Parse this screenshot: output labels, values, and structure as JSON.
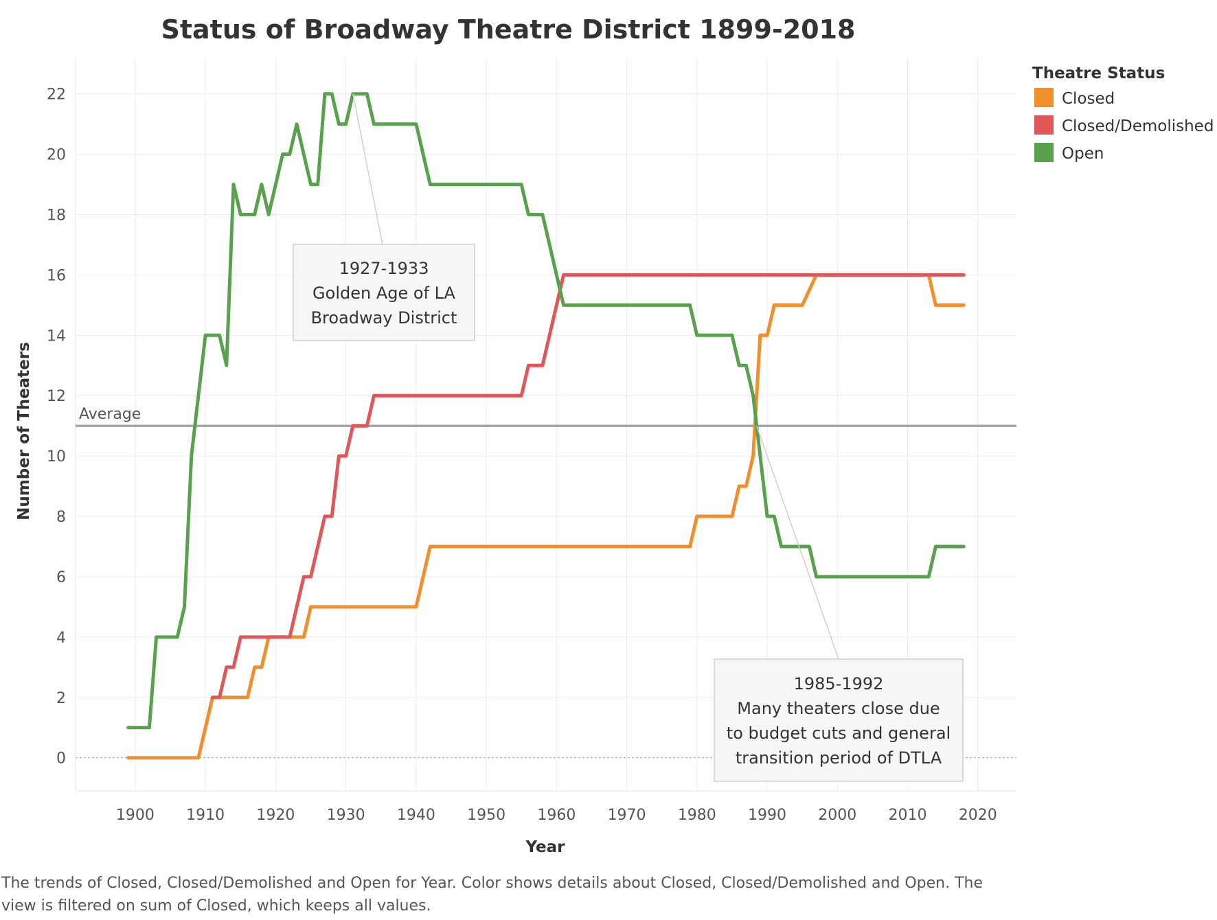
{
  "chart_data": {
    "type": "line",
    "title": "Status of Broadway Theatre District 1899-2018",
    "xlabel": "Year",
    "ylabel": "Number of Theaters",
    "xlim": [
      1891.5,
      2025.5
    ],
    "ylim": [
      -1.1,
      23.2
    ],
    "xticks": [
      1900,
      1910,
      1920,
      1930,
      1940,
      1950,
      1960,
      1970,
      1980,
      1990,
      2000,
      2010,
      2020
    ],
    "yticks": [
      0,
      2,
      4,
      6,
      8,
      10,
      12,
      14,
      16,
      18,
      20,
      22
    ],
    "grid": true,
    "legend": {
      "title": "Theatre Status",
      "placement": "right",
      "entries": [
        "Closed",
        "Closed/Demolished",
        "Open"
      ]
    },
    "series": [
      {
        "name": "Closed",
        "color": "#f28e2b",
        "points": [
          [
            1899,
            0
          ],
          [
            1909,
            0
          ],
          [
            1911,
            2
          ],
          [
            1916,
            2
          ],
          [
            1917,
            3
          ],
          [
            1918,
            3
          ],
          [
            1919,
            4
          ],
          [
            1924,
            4
          ],
          [
            1925,
            5
          ],
          [
            1940,
            5
          ],
          [
            1942,
            7
          ],
          [
            1979,
            7
          ],
          [
            1980,
            8
          ],
          [
            1985,
            8
          ],
          [
            1986,
            9
          ],
          [
            1987,
            9
          ],
          [
            1988,
            10
          ],
          [
            1989,
            14
          ],
          [
            1990,
            14
          ],
          [
            1991,
            15
          ],
          [
            1995,
            15
          ],
          [
            1997,
            16
          ],
          [
            2013,
            16
          ],
          [
            2014,
            15
          ],
          [
            2018,
            15
          ]
        ]
      },
      {
        "name": "Closed/Demolished",
        "color": "#e15759",
        "points": [
          [
            1911,
            2
          ],
          [
            1912,
            2
          ],
          [
            1913,
            3
          ],
          [
            1914,
            3
          ],
          [
            1915,
            4
          ],
          [
            1921,
            4
          ],
          [
            1922,
            4
          ],
          [
            1924,
            6
          ],
          [
            1925,
            6
          ],
          [
            1927,
            8
          ],
          [
            1928,
            8
          ],
          [
            1929,
            10
          ],
          [
            1930,
            10
          ],
          [
            1931,
            11
          ],
          [
            1933,
            11
          ],
          [
            1934,
            12
          ],
          [
            1955,
            12
          ],
          [
            1956,
            13
          ],
          [
            1958,
            13
          ],
          [
            1961,
            16
          ],
          [
            2018,
            16
          ]
        ]
      },
      {
        "name": "Open",
        "color": "#59a14f",
        "points": [
          [
            1899,
            1
          ],
          [
            1902,
            1
          ],
          [
            1903,
            4
          ],
          [
            1906,
            4
          ],
          [
            1907,
            5
          ],
          [
            1908,
            10
          ],
          [
            1910,
            14
          ],
          [
            1912,
            14
          ],
          [
            1913,
            13
          ],
          [
            1914,
            19
          ],
          [
            1915,
            18
          ],
          [
            1917,
            18
          ],
          [
            1918,
            19
          ],
          [
            1919,
            18
          ],
          [
            1921,
            20
          ],
          [
            1922,
            20
          ],
          [
            1923,
            21
          ],
          [
            1925,
            19
          ],
          [
            1926,
            19
          ],
          [
            1927,
            22
          ],
          [
            1928,
            22
          ],
          [
            1929,
            21
          ],
          [
            1930,
            21
          ],
          [
            1931,
            22
          ],
          [
            1933,
            22
          ],
          [
            1934,
            21
          ],
          [
            1940,
            21
          ],
          [
            1942,
            19
          ],
          [
            1955,
            19
          ],
          [
            1956,
            18
          ],
          [
            1958,
            18
          ],
          [
            1961,
            15
          ],
          [
            1979,
            15
          ],
          [
            1980,
            14
          ],
          [
            1985,
            14
          ],
          [
            1986,
            13
          ],
          [
            1987,
            13
          ],
          [
            1988,
            12
          ],
          [
            1990,
            8
          ],
          [
            1991,
            8
          ],
          [
            1992,
            7
          ],
          [
            1996,
            7
          ],
          [
            1997,
            6
          ],
          [
            2013,
            6
          ],
          [
            2014,
            7
          ],
          [
            2018,
            7
          ]
        ]
      }
    ],
    "reference_line": {
      "label": "Average",
      "value": 11
    },
    "annotations": [
      {
        "lines": [
          "1927-1933",
          "Golden Age of LA",
          "Broadway District"
        ],
        "target": [
          1931,
          22
        ]
      },
      {
        "lines": [
          "1985-1992",
          "Many theaters close due",
          "to budget cuts and general",
          "transition period of DTLA"
        ],
        "target": [
          1988.5,
          11
        ]
      }
    ]
  },
  "caption": "The trends of Closed, Closed/Demolished and Open for Year.  Color shows details about Closed, Closed/Demolished and Open. The view is filtered on sum of Closed, which keeps all values."
}
